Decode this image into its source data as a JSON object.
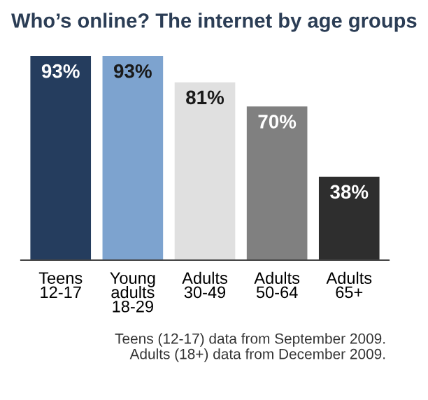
{
  "chart_data": {
    "type": "bar",
    "title": "Who’s online? The internet by age groups",
    "categories": [
      "Teens\n12-17",
      "Young\nadults\n18-29",
      "Adults\n30-49",
      "Adults\n50-64",
      "Adults\n65+"
    ],
    "values": [
      93,
      93,
      81,
      70,
      38
    ],
    "colors": [
      "#253d5e",
      "#7da3cf",
      "#e0e0e0",
      "#808080",
      "#2e2e2e"
    ],
    "value_labels": [
      "93%",
      "93%",
      "81%",
      "70%",
      "38%"
    ],
    "annotations": [
      "Teens (12-17) data from September 2009.",
      "Adults (18+) data from December 2009."
    ]
  }
}
